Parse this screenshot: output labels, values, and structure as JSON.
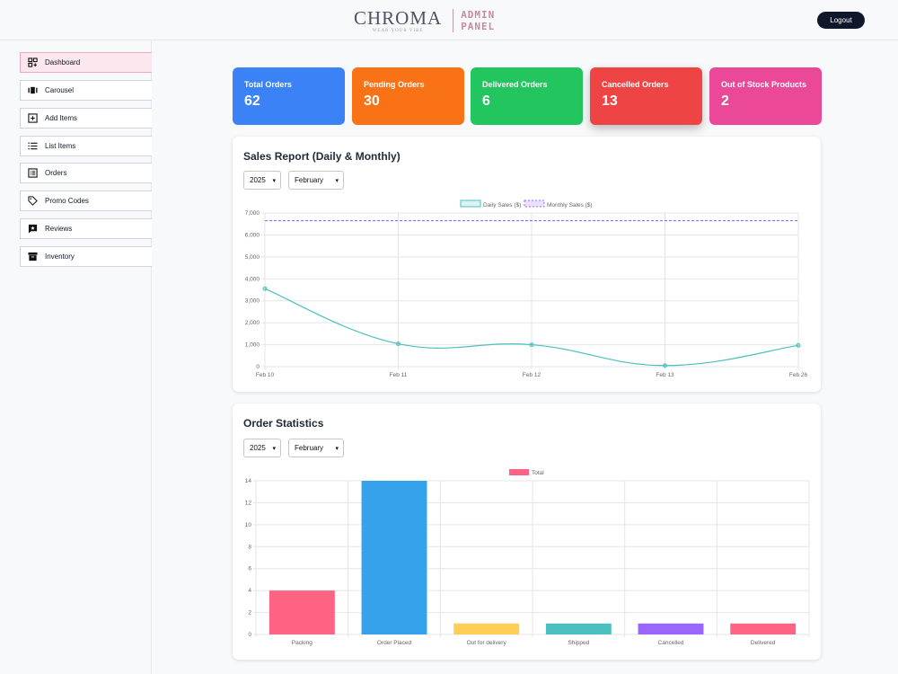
{
  "header": {
    "logo_word": "CHROMA",
    "logo_tagline": "WEAR YOUR VIBE",
    "logo_admin_line1": "ADMIN",
    "logo_admin_line2": "PANEL",
    "logout_label": "Logout"
  },
  "sidebar": {
    "items": [
      {
        "label": "Dashboard",
        "icon": "dashboard-icon",
        "active": true
      },
      {
        "label": "Carousel",
        "icon": "carousel-icon"
      },
      {
        "label": "Add Items",
        "icon": "add-square-icon"
      },
      {
        "label": "List Items",
        "icon": "list-icon"
      },
      {
        "label": "Orders",
        "icon": "orders-icon"
      },
      {
        "label": "Promo Codes",
        "icon": "tag-icon"
      },
      {
        "label": "Reviews",
        "icon": "review-icon"
      },
      {
        "label": "Inventory",
        "icon": "archive-icon"
      }
    ]
  },
  "stats": [
    {
      "label": "Total Orders",
      "value": "62",
      "color": "#3b82f6"
    },
    {
      "label": "Pending Orders",
      "value": "30",
      "color": "#f97316"
    },
    {
      "label": "Delivered Orders",
      "value": "6",
      "color": "#22c55e"
    },
    {
      "label": "Cancelled Orders",
      "value": "13",
      "color": "#ef4444"
    },
    {
      "label": "Out of Stock Products",
      "value": "2",
      "color": "#ec4899"
    }
  ],
  "sales": {
    "title": "Sales Report (Daily & Monthly)",
    "year": "2025",
    "month": "February"
  },
  "orders": {
    "title": "Order Statistics",
    "year": "2025",
    "month": "February"
  },
  "chart_data": [
    {
      "type": "line",
      "x": [
        "Feb 10",
        "Feb 11",
        "Feb 12",
        "Feb 13",
        "Feb 26"
      ],
      "series": [
        {
          "name": "Daily Sales ($)",
          "values": [
            3550,
            1040,
            1000,
            50,
            970
          ],
          "color": "#4bc0c0"
        },
        {
          "name": "Monthly Sales ($)",
          "values": [
            6650,
            6650,
            6650,
            6650,
            6650
          ],
          "color": "#9966ff",
          "dashed": true
        }
      ],
      "yticks": [
        "0",
        "1,000",
        "2,000",
        "3,000",
        "4,000",
        "5,000",
        "6,000",
        "7,000"
      ],
      "ylim": [
        0,
        7000
      ],
      "grid": true,
      "legend": "top-center"
    },
    {
      "type": "bar",
      "categories": [
        "Packing",
        "Order Placed",
        "Out for delivery",
        "Shipped",
        "Cancelled",
        "Delivered"
      ],
      "series": [
        {
          "name": "Total",
          "values": [
            4,
            14,
            1,
            1,
            1,
            1
          ]
        }
      ],
      "colors": [
        "#ff6384",
        "#36a2eb",
        "#ffce56",
        "#4bc0c0",
        "#9966ff",
        "#ff6384"
      ],
      "yticks": [
        "0",
        "2",
        "4",
        "6",
        "8",
        "10",
        "12",
        "14"
      ],
      "ylim": [
        0,
        14
      ],
      "grid": true,
      "legend": "top-center"
    }
  ]
}
